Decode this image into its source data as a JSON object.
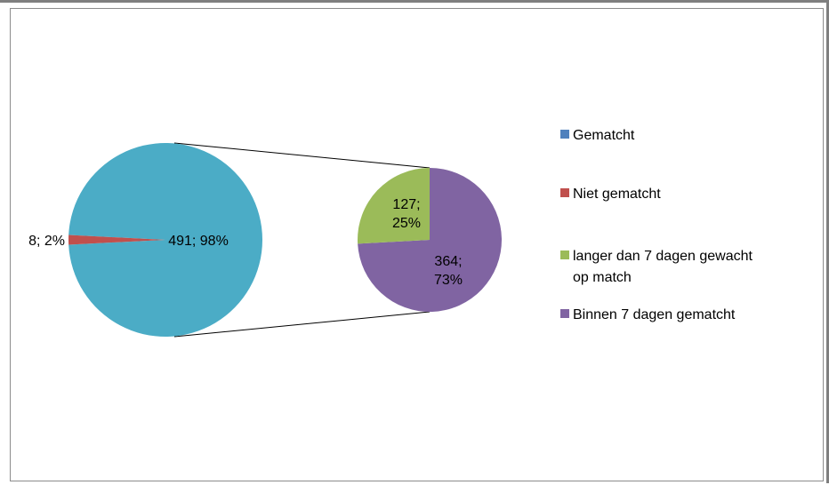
{
  "chart_data": {
    "type": "pie",
    "subtype": "pie-of-pie",
    "title": "",
    "main_pie": {
      "slices": [
        {
          "name": "Gematcht",
          "value": 491,
          "percent": "98%",
          "label": "491; 98%",
          "color": "#4BACC6"
        },
        {
          "name": "Niet gematcht",
          "value": 8,
          "percent": "2%",
          "label": "8; 2%",
          "color": "#C0504D"
        }
      ]
    },
    "secondary_pie": {
      "source_slice": "Gematcht",
      "slices": [
        {
          "name": "langer dan 7 dagen gewacht op match",
          "value": 127,
          "percent": "25%",
          "label_lines": [
            "127;",
            "25%"
          ],
          "color": "#9BBB59"
        },
        {
          "name": "Binnen 7 dagen gematcht",
          "value": 364,
          "percent": "73%",
          "label_lines": [
            "364;",
            "73%"
          ],
          "color": "#8064A2"
        }
      ]
    },
    "legend": {
      "position": "right",
      "entries": [
        {
          "lines": [
            "Gematcht"
          ],
          "color": "#4F81BD"
        },
        {
          "lines": [
            "Niet gematcht"
          ],
          "color": "#C0504D"
        },
        {
          "lines": [
            "langer dan 7 dagen gewacht",
            "op match"
          ],
          "color": "#9BBB59"
        },
        {
          "lines": [
            "Binnen 7 dagen gematcht"
          ],
          "color": "#8064A2"
        }
      ]
    }
  }
}
